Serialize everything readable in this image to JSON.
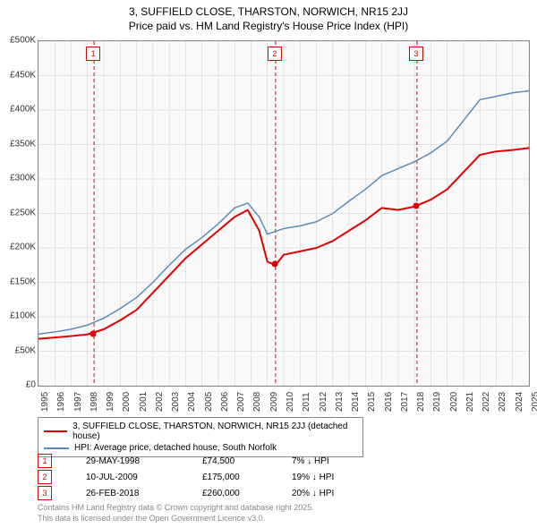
{
  "title_line1": "3, SUFFIELD CLOSE, THARSTON, NORWICH, NR15 2JJ",
  "title_line2": "Price paid vs. HM Land Registry's House Price Index (HPI)",
  "chart": {
    "type": "line",
    "background_color": "#fafafa",
    "grid_color": "#cccccc",
    "border_color": "#888888",
    "ylim": [
      0,
      500000
    ],
    "ytick_step": 50000,
    "ytick_labels": [
      "£0",
      "£50K",
      "£100K",
      "£150K",
      "£200K",
      "£250K",
      "£300K",
      "£350K",
      "£400K",
      "£450K",
      "£500K"
    ],
    "xlim": [
      1995,
      2025
    ],
    "xtick_step": 1,
    "xtick_labels": [
      "1995",
      "1996",
      "1997",
      "1998",
      "1999",
      "2000",
      "2001",
      "2002",
      "2003",
      "2004",
      "2005",
      "2006",
      "2007",
      "2008",
      "2009",
      "2010",
      "2011",
      "2012",
      "2013",
      "2014",
      "2015",
      "2016",
      "2017",
      "2018",
      "2019",
      "2020",
      "2021",
      "2022",
      "2023",
      "2024",
      "2025"
    ],
    "label_fontsize": 10,
    "series": [
      {
        "name": "price_paid",
        "color": "#e00000",
        "width": 2,
        "x": [
          1995,
          1996,
          1997,
          1998,
          1999,
          2000,
          2001,
          2002,
          2003,
          2004,
          2005,
          2006,
          2007,
          2007.8,
          2008.5,
          2009,
          2009.5,
          2010,
          2011,
          2012,
          2013,
          2014,
          2015,
          2016,
          2017,
          2018,
          2019,
          2020,
          2021,
          2022,
          2023,
          2024,
          2025
        ],
        "y": [
          68000,
          70000,
          72000,
          74500,
          82000,
          95000,
          110000,
          135000,
          160000,
          185000,
          205000,
          225000,
          245000,
          255000,
          225000,
          180000,
          175000,
          190000,
          195000,
          200000,
          210000,
          225000,
          240000,
          258000,
          255000,
          260000,
          270000,
          285000,
          310000,
          335000,
          340000,
          342000,
          345000
        ]
      },
      {
        "name": "hpi",
        "color": "#5b8bb8",
        "width": 1.5,
        "x": [
          1995,
          1996,
          1997,
          1998,
          1999,
          2000,
          2001,
          2002,
          2003,
          2004,
          2005,
          2006,
          2007,
          2007.8,
          2008.5,
          2009,
          2010,
          2011,
          2012,
          2013,
          2014,
          2015,
          2016,
          2017,
          2018,
          2019,
          2020,
          2021,
          2022,
          2023,
          2024,
          2025
        ],
        "y": [
          75000,
          78000,
          82000,
          88000,
          98000,
          112000,
          128000,
          150000,
          175000,
          198000,
          215000,
          235000,
          258000,
          265000,
          245000,
          220000,
          228000,
          232000,
          238000,
          250000,
          268000,
          285000,
          305000,
          315000,
          325000,
          338000,
          355000,
          385000,
          415000,
          420000,
          425000,
          428000
        ]
      }
    ],
    "sale_markers": [
      {
        "num": "1",
        "year": 1998.4,
        "y": 74500
      },
      {
        "num": "2",
        "year": 2009.5,
        "y": 175000
      },
      {
        "num": "3",
        "year": 2018.15,
        "y": 260000
      }
    ],
    "vline_color": "#e00000",
    "vline_dash": "4,3"
  },
  "legend": {
    "items": [
      {
        "color": "#e00000",
        "label": "3, SUFFIELD CLOSE, THARSTON, NORWICH, NR15 2JJ (detached house)"
      },
      {
        "color": "#5b8bb8",
        "label": "HPI: Average price, detached house, South Norfolk"
      }
    ]
  },
  "sales": [
    {
      "num": "1",
      "date": "29-MAY-1998",
      "price": "£74,500",
      "diff": "7% ↓ HPI"
    },
    {
      "num": "2",
      "date": "10-JUL-2009",
      "price": "£175,000",
      "diff": "19% ↓ HPI"
    },
    {
      "num": "3",
      "date": "26-FEB-2018",
      "price": "£260,000",
      "diff": "20% ↓ HPI"
    }
  ],
  "footer_line1": "Contains HM Land Registry data © Crown copyright and database right 2025.",
  "footer_line2": "This data is licensed under the Open Government Licence v3.0."
}
